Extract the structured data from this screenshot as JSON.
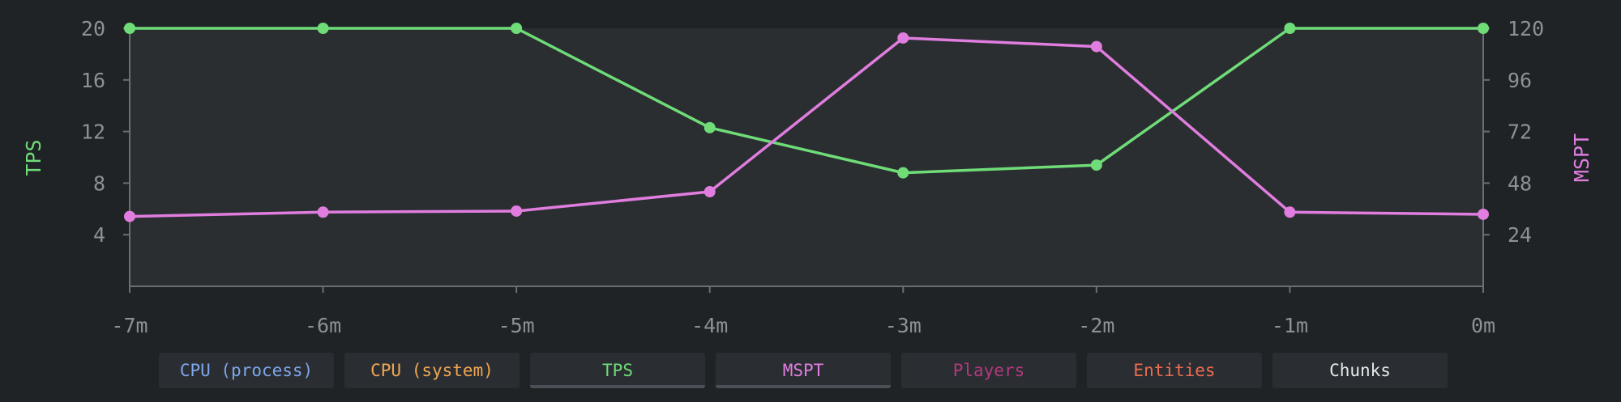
{
  "chart_data": {
    "type": "line",
    "x": [
      "-7m",
      "-6m",
      "-5m",
      "-4m",
      "-3m",
      "-2m",
      "-1m",
      "0m"
    ],
    "left_axis": {
      "label": "TPS",
      "ylim": [
        0,
        20
      ],
      "ticks": [
        "4",
        "8",
        "12",
        "16",
        "20"
      ],
      "color": "#6fdc78"
    },
    "right_axis": {
      "label": "MSPT",
      "ylim": [
        0,
        120
      ],
      "ticks": [
        "24",
        "48",
        "72",
        "96",
        "120"
      ],
      "color": "#e07ddf"
    },
    "series": [
      {
        "name": "TPS",
        "axis": "left",
        "color": "#6fdc78",
        "values": [
          20,
          20,
          20,
          12.3,
          8.8,
          9.4,
          20,
          20
        ]
      },
      {
        "name": "MSPT",
        "axis": "right",
        "color": "#e07ddf",
        "values": [
          32.5,
          34.5,
          35,
          44,
          115.5,
          111.5,
          34.5,
          33.5
        ]
      }
    ],
    "grid": false
  },
  "legend": [
    {
      "label": "CPU (process)",
      "color": "#7ea6ea",
      "active": false
    },
    {
      "label": "CPU (system)",
      "color": "#f0a651",
      "active": false
    },
    {
      "label": "TPS",
      "color": "#6fdc78",
      "active": true
    },
    {
      "label": "MSPT",
      "color": "#e07ddf",
      "active": true
    },
    {
      "label": "Players",
      "color": "#b5387d",
      "active": false
    },
    {
      "label": "Entities",
      "color": "#ee6b51",
      "active": false
    },
    {
      "label": "Chunks",
      "color": "#e6e8ea",
      "active": false
    }
  ]
}
